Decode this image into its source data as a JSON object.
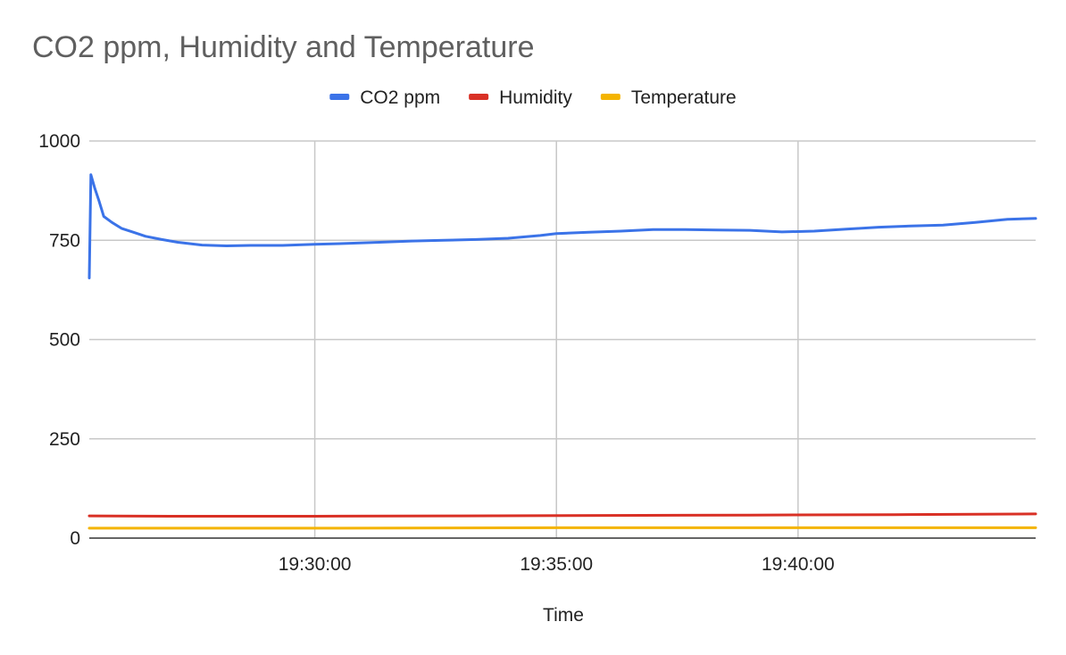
{
  "chart_data": {
    "type": "line",
    "title": "CO2 ppm, Humidity and Temperature",
    "xlabel": "Time",
    "ylabel": "",
    "x_ticks": [
      "19:30:00",
      "19:35:00",
      "19:40:00"
    ],
    "y_ticks": [
      0,
      250,
      500,
      750,
      1000
    ],
    "xlim": [
      "19:25:20",
      "19:44:55"
    ],
    "ylim": [
      0,
      1000
    ],
    "grid": true,
    "legend_position": "top",
    "colors": {
      "co2": "#3b73e8",
      "humidity": "#d93025",
      "temperature": "#f4b400",
      "grid": "#c8c8c8"
    },
    "series": [
      {
        "name": "CO2 ppm",
        "color": "#3b73e8",
        "points": [
          {
            "x": "19:25:20",
            "y": 655
          },
          {
            "x": "19:25:22",
            "y": 915
          },
          {
            "x": "19:25:27",
            "y": 880
          },
          {
            "x": "19:25:32",
            "y": 850
          },
          {
            "x": "19:25:38",
            "y": 810
          },
          {
            "x": "19:25:48",
            "y": 795
          },
          {
            "x": "19:26:00",
            "y": 780
          },
          {
            "x": "19:26:15",
            "y": 770
          },
          {
            "x": "19:26:30",
            "y": 760
          },
          {
            "x": "19:26:50",
            "y": 752
          },
          {
            "x": "19:27:10",
            "y": 745
          },
          {
            "x": "19:27:40",
            "y": 738
          },
          {
            "x": "19:28:10",
            "y": 736
          },
          {
            "x": "19:28:40",
            "y": 737
          },
          {
            "x": "19:29:20",
            "y": 737
          },
          {
            "x": "19:30:00",
            "y": 740
          },
          {
            "x": "19:30:40",
            "y": 742
          },
          {
            "x": "19:31:20",
            "y": 745
          },
          {
            "x": "19:32:00",
            "y": 748
          },
          {
            "x": "19:32:40",
            "y": 750
          },
          {
            "x": "19:33:20",
            "y": 752
          },
          {
            "x": "19:34:00",
            "y": 755
          },
          {
            "x": "19:34:40",
            "y": 762
          },
          {
            "x": "19:35:00",
            "y": 767
          },
          {
            "x": "19:35:40",
            "y": 770
          },
          {
            "x": "19:36:20",
            "y": 773
          },
          {
            "x": "19:37:00",
            "y": 777
          },
          {
            "x": "19:37:40",
            "y": 777
          },
          {
            "x": "19:38:20",
            "y": 776
          },
          {
            "x": "19:39:00",
            "y": 775
          },
          {
            "x": "19:39:40",
            "y": 771
          },
          {
            "x": "19:40:20",
            "y": 773
          },
          {
            "x": "19:41:00",
            "y": 778
          },
          {
            "x": "19:41:40",
            "y": 783
          },
          {
            "x": "19:42:20",
            "y": 786
          },
          {
            "x": "19:43:00",
            "y": 788
          },
          {
            "x": "19:43:40",
            "y": 795
          },
          {
            "x": "19:44:20",
            "y": 803
          },
          {
            "x": "19:44:55",
            "y": 805
          }
        ]
      },
      {
        "name": "Humidity",
        "color": "#d93025",
        "points": [
          {
            "x": "19:25:20",
            "y": 56
          },
          {
            "x": "19:27:00",
            "y": 55
          },
          {
            "x": "19:30:00",
            "y": 55
          },
          {
            "x": "19:33:00",
            "y": 56
          },
          {
            "x": "19:36:00",
            "y": 57
          },
          {
            "x": "19:39:00",
            "y": 58
          },
          {
            "x": "19:42:00",
            "y": 59
          },
          {
            "x": "19:44:55",
            "y": 61
          }
        ]
      },
      {
        "name": "Temperature",
        "color": "#f4b400",
        "points": [
          {
            "x": "19:25:20",
            "y": 25
          },
          {
            "x": "19:30:00",
            "y": 25
          },
          {
            "x": "19:35:00",
            "y": 26
          },
          {
            "x": "19:40:00",
            "y": 26
          },
          {
            "x": "19:44:55",
            "y": 26
          }
        ]
      }
    ]
  }
}
